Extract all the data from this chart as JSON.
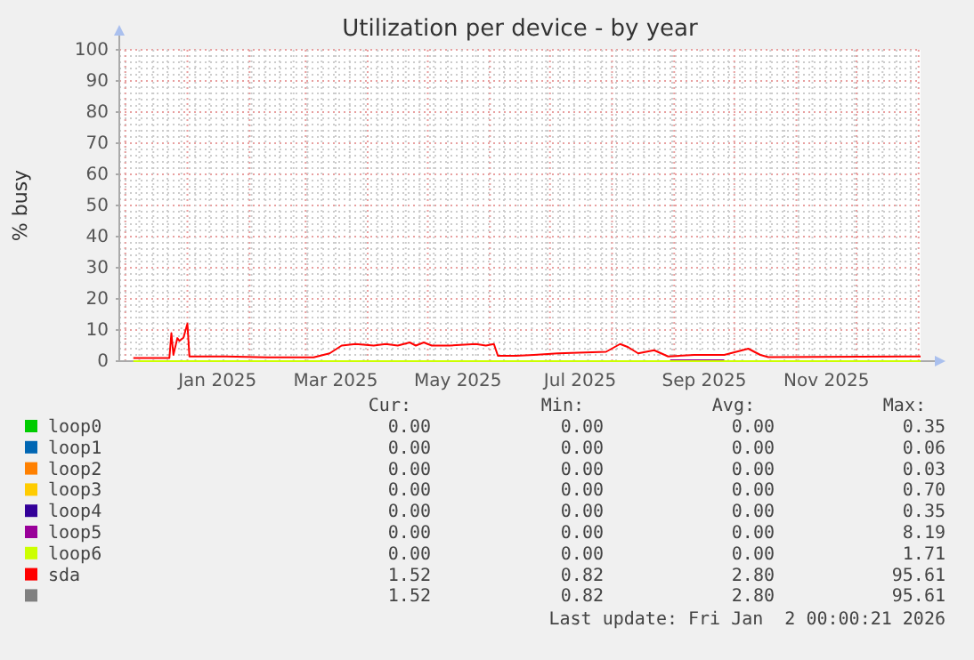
{
  "chart_data": {
    "type": "line",
    "title": "Utilization per device - by year",
    "ylabel": "% busy",
    "xlim": [
      "2024-11-28",
      "2026-01-02"
    ],
    "xticks": [
      {
        "value": "2025-01-16",
        "label": "Jan 2025"
      },
      {
        "value": "2025-03-16",
        "label": "Mar 2025"
      },
      {
        "value": "2025-05-16",
        "label": "May 2025"
      },
      {
        "value": "2025-07-16",
        "label": "Jul 2025"
      },
      {
        "value": "2025-09-16",
        "label": "Sep 2025"
      },
      {
        "value": "2025-11-16",
        "label": "Nov 2025"
      }
    ],
    "ylim": [
      0,
      100
    ],
    "yticks": [
      0,
      10,
      20,
      30,
      40,
      50,
      60,
      70,
      80,
      90,
      100
    ],
    "grid": true,
    "legend": "bottom",
    "series": [
      {
        "name": "loop0",
        "color": "#00cc00"
      },
      {
        "name": "loop1",
        "color": "#0066b3"
      },
      {
        "name": "loop2",
        "color": "#ff8000"
      },
      {
        "name": "loop3",
        "color": "#ffcc00"
      },
      {
        "name": "loop4",
        "color": "#330099"
      },
      {
        "name": "loop5",
        "color": "#990099",
        "x": [
          "2025-08-30",
          "2025-09-26"
        ],
        "values": [
          0.3,
          0.3
        ]
      },
      {
        "name": "loop6",
        "color": "#ccff00",
        "x": [
          "2024-12-05",
          "2026-01-02"
        ],
        "values": [
          0,
          0
        ]
      },
      {
        "name": "sda",
        "color": "#ff0000",
        "x": [
          "2024-12-05",
          "2024-12-23",
          "2024-12-24",
          "2024-12-25",
          "2024-12-27",
          "2024-12-28",
          "2024-12-30",
          "2025-01-01",
          "2025-01-02",
          "2025-01-20",
          "2025-02-10",
          "2025-03-05",
          "2025-03-13",
          "2025-03-19",
          "2025-03-26",
          "2025-04-04",
          "2025-04-10",
          "2025-04-16",
          "2025-04-22",
          "2025-04-25",
          "2025-04-29",
          "2025-05-03",
          "2025-05-12",
          "2025-05-25",
          "2025-05-30",
          "2025-06-03",
          "2025-06-05",
          "2025-06-14",
          "2025-06-23",
          "2025-07-05",
          "2025-07-29",
          "2025-08-05",
          "2025-08-09",
          "2025-08-14",
          "2025-08-22",
          "2025-08-29",
          "2025-09-11",
          "2025-09-26",
          "2025-10-08",
          "2025-10-14",
          "2025-10-18",
          "2026-01-02"
        ],
        "values": [
          1,
          1,
          9,
          2,
          7.4,
          6.5,
          7.5,
          12,
          1.5,
          1.5,
          1.2,
          1.2,
          2.5,
          5,
          5.5,
          5,
          5.5,
          5,
          6,
          5,
          6,
          5,
          5,
          5.5,
          5,
          5.5,
          1.7,
          1.7,
          2,
          2.5,
          3,
          5.5,
          4.5,
          2.5,
          3.5,
          1.5,
          2,
          2,
          4,
          2,
          1.3,
          1.5
        ]
      },
      {
        "color": "#808080"
      }
    ],
    "annotations": [
      "Cur:",
      "Min:",
      "Avg:",
      "Max:",
      "0.00",
      "0.00",
      "0.00",
      "0.35",
      "0.00",
      "0.00",
      "0.00",
      "0.06",
      "0.00",
      "0.00",
      "0.00",
      "0.03",
      "0.00",
      "0.00",
      "0.00",
      "0.70",
      "0.00",
      "0.00",
      "0.00",
      "0.35",
      "0.00",
      "0.00",
      "0.00",
      "8.19",
      "0.00",
      "0.00",
      "0.00",
      "1.71",
      "1.52",
      "0.82",
      "2.80",
      "95.61",
      "1.52",
      "0.82",
      "2.80",
      "95.61",
      "Last update: Fri Jan  2 00:00:21 2026"
    ]
  }
}
